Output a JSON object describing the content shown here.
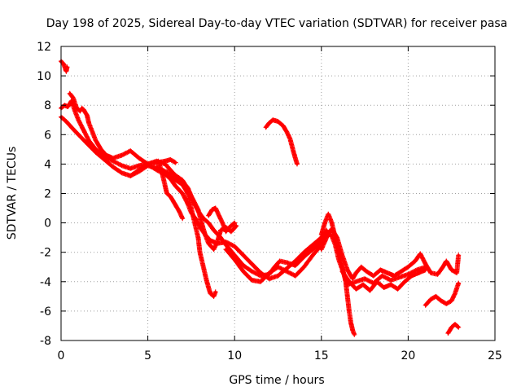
{
  "chart_data": {
    "type": "scatter",
    "title": "Day 198 of 2025, Sidereal Day-to-day VTEC variation (SDTVAR) for receiver pasa",
    "xlabel": "GPS time / hours",
    "ylabel": "SDTVAR / TECUs",
    "xlim": [
      0,
      25
    ],
    "ylim": [
      -8,
      12
    ],
    "x_ticks": [
      "0",
      "5",
      "10",
      "15",
      "20",
      "25"
    ],
    "y_ticks": [
      "12",
      "10",
      "8",
      "6",
      "4",
      "2",
      "0",
      "-2",
      "-4",
      "-6",
      "-8"
    ],
    "grid": true,
    "series": [
      {
        "name": "track-1",
        "color": "#ff0000",
        "marker": "+",
        "points": [
          [
            0.0,
            11.0
          ],
          [
            0.15,
            10.8
          ],
          [
            0.3,
            10.3
          ],
          [
            0.35,
            10.6
          ]
        ]
      },
      {
        "name": "track-2",
        "color": "#ff0000",
        "marker": "+",
        "points": [
          [
            0.0,
            7.8
          ],
          [
            0.2,
            8.0
          ],
          [
            0.4,
            7.9
          ],
          [
            0.6,
            8.3
          ],
          [
            0.8,
            7.6
          ],
          [
            1.0,
            7.0
          ],
          [
            1.3,
            6.3
          ],
          [
            1.6,
            5.6
          ],
          [
            2.0,
            5.0
          ],
          [
            2.5,
            4.5
          ],
          [
            3.0,
            4.2
          ],
          [
            3.5,
            3.9
          ],
          [
            4.0,
            3.7
          ],
          [
            4.5,
            3.9
          ],
          [
            5.0,
            4.0
          ],
          [
            5.5,
            4.1
          ],
          [
            6.0,
            4.2
          ],
          [
            6.3,
            4.3
          ],
          [
            6.6,
            4.1
          ]
        ]
      },
      {
        "name": "track-3",
        "color": "#ff0000",
        "marker": "+",
        "points": [
          [
            0.0,
            7.2
          ],
          [
            0.3,
            6.9
          ],
          [
            0.6,
            6.5
          ],
          [
            1.0,
            6.0
          ],
          [
            1.5,
            5.4
          ],
          [
            2.0,
            4.8
          ],
          [
            2.5,
            4.3
          ],
          [
            3.0,
            3.8
          ],
          [
            3.5,
            3.4
          ],
          [
            4.0,
            3.2
          ],
          [
            4.5,
            3.5
          ],
          [
            5.0,
            3.9
          ],
          [
            5.5,
            3.7
          ],
          [
            6.0,
            3.4
          ],
          [
            6.5,
            3.0
          ],
          [
            7.0,
            2.6
          ],
          [
            7.3,
            2.0
          ],
          [
            7.5,
            1.0
          ],
          [
            7.7,
            0.0
          ],
          [
            7.9,
            -1.0
          ],
          [
            8.0,
            -2.0
          ],
          [
            8.2,
            -3.0
          ],
          [
            8.4,
            -4.0
          ],
          [
            8.6,
            -4.8
          ],
          [
            8.8,
            -5.0
          ],
          [
            8.9,
            -4.7
          ]
        ]
      },
      {
        "name": "track-4",
        "color": "#ff0000",
        "marker": "+",
        "points": [
          [
            0.5,
            8.8
          ],
          [
            0.7,
            8.5
          ],
          [
            0.9,
            7.8
          ],
          [
            1.1,
            7.6
          ],
          [
            1.2,
            7.8
          ],
          [
            1.3,
            7.7
          ],
          [
            1.5,
            7.3
          ],
          [
            1.6,
            6.8
          ],
          [
            1.8,
            6.2
          ],
          [
            2.0,
            5.6
          ],
          [
            2.3,
            5.0
          ],
          [
            2.6,
            4.6
          ],
          [
            3.0,
            4.4
          ],
          [
            3.5,
            4.6
          ],
          [
            4.0,
            4.9
          ],
          [
            4.5,
            4.4
          ],
          [
            5.0,
            4.0
          ],
          [
            5.5,
            3.6
          ],
          [
            6.0,
            3.3
          ],
          [
            6.3,
            3.0
          ],
          [
            6.6,
            2.5
          ],
          [
            7.0,
            2.0
          ],
          [
            7.3,
            1.3
          ],
          [
            7.5,
            0.7
          ],
          [
            7.8,
            0.2
          ],
          [
            8.0,
            -0.3
          ],
          [
            8.3,
            -0.8
          ],
          [
            8.6,
            -1.2
          ],
          [
            9.0,
            -1.4
          ],
          [
            9.5,
            -1.3
          ],
          [
            10.0,
            -1.6
          ],
          [
            10.5,
            -2.2
          ],
          [
            11.0,
            -2.8
          ],
          [
            11.5,
            -3.4
          ],
          [
            12.0,
            -3.8
          ],
          [
            12.5,
            -3.6
          ],
          [
            13.0,
            -3.1
          ],
          [
            13.5,
            -2.6
          ],
          [
            14.0,
            -2.0
          ],
          [
            14.5,
            -1.5
          ],
          [
            15.0,
            -1.0
          ],
          [
            15.3,
            -0.5
          ]
        ]
      },
      {
        "name": "track-5",
        "color": "#ff0000",
        "marker": "+",
        "points": [
          [
            4.0,
            3.2
          ],
          [
            4.5,
            3.6
          ],
          [
            5.0,
            4.0
          ],
          [
            5.5,
            4.2
          ],
          [
            6.0,
            4.0
          ],
          [
            6.3,
            3.6
          ],
          [
            6.6,
            3.2
          ],
          [
            7.0,
            2.8
          ],
          [
            7.3,
            2.4
          ],
          [
            7.6,
            1.5
          ],
          [
            7.9,
            0.8
          ],
          [
            8.2,
            0.3
          ],
          [
            8.5,
            0.0
          ],
          [
            8.8,
            -0.5
          ],
          [
            9.2,
            -1.0
          ],
          [
            9.5,
            -1.5
          ],
          [
            10.0,
            -2.2
          ],
          [
            10.5,
            -2.9
          ],
          [
            11.0,
            -3.3
          ],
          [
            11.5,
            -3.6
          ],
          [
            12.0,
            -3.5
          ],
          [
            12.3,
            -3.0
          ],
          [
            12.6,
            -2.6
          ],
          [
            13.0,
            -2.7
          ],
          [
            13.5,
            -2.9
          ],
          [
            14.0,
            -2.3
          ],
          [
            14.5,
            -1.8
          ],
          [
            15.0,
            -1.2
          ]
        ]
      },
      {
        "name": "track-6",
        "color": "#ff0000",
        "marker": "+",
        "points": [
          [
            5.6,
            4.2
          ],
          [
            5.8,
            3.5
          ],
          [
            6.0,
            2.5
          ],
          [
            6.1,
            2.0
          ],
          [
            6.3,
            1.8
          ],
          [
            6.5,
            1.4
          ],
          [
            6.8,
            0.8
          ],
          [
            7.0,
            0.3
          ]
        ]
      },
      {
        "name": "track-7",
        "color": "#ff0000",
        "marker": "+",
        "points": [
          [
            5.5,
            3.8
          ],
          [
            6.0,
            3.5
          ],
          [
            6.5,
            3.3
          ],
          [
            7.0,
            2.9
          ],
          [
            7.3,
            2.3
          ],
          [
            7.6,
            1.6
          ],
          [
            7.9,
            0.9
          ],
          [
            8.1,
            0.0
          ],
          [
            8.3,
            -0.8
          ],
          [
            8.5,
            -1.4
          ],
          [
            8.8,
            -1.8
          ],
          [
            9.0,
            -1.3
          ],
          [
            9.2,
            -0.5
          ],
          [
            9.5,
            -0.3
          ],
          [
            9.8,
            -0.6
          ],
          [
            10.1,
            -0.2
          ]
        ]
      },
      {
        "name": "track-8",
        "color": "#ff0000",
        "marker": "+",
        "points": [
          [
            8.5,
            0.5
          ],
          [
            8.7,
            0.9
          ],
          [
            8.9,
            1.0
          ],
          [
            9.1,
            0.5
          ],
          [
            9.3,
            0.0
          ],
          [
            9.5,
            -0.6
          ],
          [
            9.7,
            -0.3
          ],
          [
            10.0,
            0.0
          ]
        ]
      },
      {
        "name": "track-9",
        "color": "#ff0000",
        "marker": "+",
        "points": [
          [
            9.5,
            -1.8
          ],
          [
            10.0,
            -2.5
          ],
          [
            10.5,
            -3.3
          ],
          [
            11.0,
            -3.9
          ],
          [
            11.5,
            -4.0
          ],
          [
            12.0,
            -3.4
          ],
          [
            12.5,
            -3.0
          ],
          [
            13.0,
            -3.3
          ],
          [
            13.5,
            -3.6
          ],
          [
            14.0,
            -3.0
          ],
          [
            14.5,
            -2.2
          ],
          [
            15.0,
            -1.5
          ],
          [
            15.3,
            -0.6
          ],
          [
            15.6,
            -0.9
          ],
          [
            15.8,
            -1.5
          ],
          [
            16.0,
            -2.5
          ],
          [
            16.3,
            -3.5
          ],
          [
            16.5,
            -4.2
          ],
          [
            17.0,
            -4.0
          ],
          [
            17.5,
            -3.8
          ],
          [
            18.0,
            -4.1
          ],
          [
            18.5,
            -3.6
          ],
          [
            19.0,
            -3.9
          ],
          [
            19.5,
            -3.7
          ],
          [
            20.0,
            -3.5
          ],
          [
            20.5,
            -3.2
          ],
          [
            21.0,
            -3.0
          ]
        ]
      },
      {
        "name": "track-10",
        "color": "#ff0000",
        "marker": "+",
        "points": [
          [
            11.8,
            6.5
          ],
          [
            12.0,
            6.8
          ],
          [
            12.2,
            7.0
          ],
          [
            12.5,
            6.9
          ],
          [
            12.8,
            6.6
          ],
          [
            13.0,
            6.2
          ],
          [
            13.2,
            5.7
          ],
          [
            13.4,
            4.8
          ],
          [
            13.6,
            4.0
          ]
        ]
      },
      {
        "name": "track-11",
        "color": "#ff0000",
        "marker": "+",
        "points": [
          [
            15.0,
            -0.8
          ],
          [
            15.2,
            0.0
          ],
          [
            15.4,
            0.6
          ],
          [
            15.6,
            0.0
          ],
          [
            15.8,
            -1.0
          ],
          [
            16.0,
            -2.0
          ],
          [
            16.2,
            -3.0
          ],
          [
            16.4,
            -4.0
          ],
          [
            16.5,
            -5.0
          ],
          [
            16.6,
            -6.0
          ],
          [
            16.7,
            -6.8
          ],
          [
            16.8,
            -7.3
          ],
          [
            16.9,
            -7.6
          ]
        ]
      },
      {
        "name": "track-12",
        "color": "#ff0000",
        "marker": "+",
        "points": [
          [
            15.0,
            -1.8
          ],
          [
            15.3,
            -1.0
          ],
          [
            15.6,
            -0.4
          ],
          [
            15.9,
            -1.0
          ],
          [
            16.2,
            -2.2
          ],
          [
            16.5,
            -3.2
          ],
          [
            16.8,
            -3.8
          ],
          [
            17.0,
            -3.4
          ],
          [
            17.3,
            -3.0
          ],
          [
            17.6,
            -3.3
          ],
          [
            18.0,
            -3.6
          ],
          [
            18.4,
            -3.2
          ],
          [
            18.8,
            -3.4
          ],
          [
            19.2,
            -3.6
          ],
          [
            19.6,
            -3.3
          ],
          [
            20.0,
            -3.0
          ],
          [
            20.4,
            -2.6
          ],
          [
            20.7,
            -2.1
          ],
          [
            21.0,
            -2.8
          ],
          [
            21.3,
            -3.4
          ],
          [
            21.7,
            -3.5
          ],
          [
            22.0,
            -3.0
          ],
          [
            22.2,
            -2.6
          ],
          [
            22.5,
            -3.2
          ],
          [
            22.8,
            -3.4
          ],
          [
            22.9,
            -2.2
          ]
        ]
      },
      {
        "name": "track-13",
        "color": "#ff0000",
        "marker": "+",
        "points": [
          [
            16.2,
            -3.3
          ],
          [
            16.6,
            -4.0
          ],
          [
            17.0,
            -4.5
          ],
          [
            17.4,
            -4.2
          ],
          [
            17.8,
            -4.6
          ],
          [
            18.2,
            -4.0
          ],
          [
            18.6,
            -4.4
          ],
          [
            19.0,
            -4.2
          ],
          [
            19.4,
            -4.5
          ],
          [
            19.8,
            -4.0
          ],
          [
            20.2,
            -3.6
          ],
          [
            20.6,
            -3.4
          ],
          [
            21.0,
            -3.2
          ]
        ]
      },
      {
        "name": "track-14",
        "color": "#ff0000",
        "marker": "+",
        "points": [
          [
            21.0,
            -5.6
          ],
          [
            21.3,
            -5.2
          ],
          [
            21.6,
            -5.0
          ],
          [
            21.9,
            -5.3
          ],
          [
            22.2,
            -5.5
          ],
          [
            22.5,
            -5.3
          ],
          [
            22.7,
            -4.8
          ],
          [
            22.9,
            -4.1
          ]
        ]
      },
      {
        "name": "track-15",
        "color": "#ff0000",
        "marker": "+",
        "points": [
          [
            22.3,
            -7.5
          ],
          [
            22.5,
            -7.1
          ],
          [
            22.7,
            -6.9
          ],
          [
            22.9,
            -7.1
          ]
        ]
      }
    ]
  }
}
